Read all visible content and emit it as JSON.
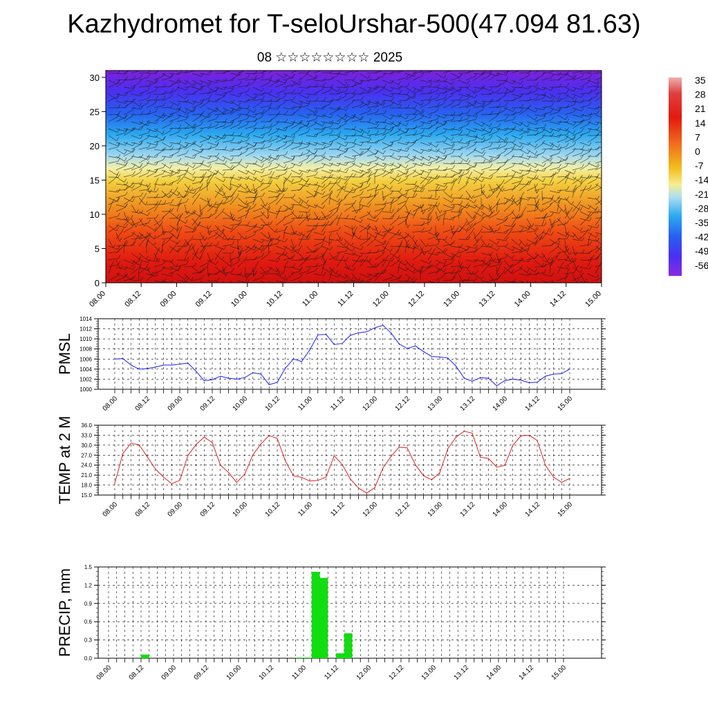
{
  "title": "Kazhydromet for T-seloUrshar-500(47.094 81.63)",
  "subtitle": "08 ☆☆☆☆☆☆☆☆ 2025",
  "chart_data": [
    {
      "type": "heatmap",
      "name": "cross-section",
      "description_note": "",
      "x_ticks": [
        "08.00",
        "08.12",
        "09.00",
        "09.12",
        "10.00",
        "10.12",
        "11.00",
        "11.12",
        "12.00",
        "12.12",
        "13.00",
        "13.12",
        "14.00",
        "14.12",
        "15.00"
      ],
      "y_ticks": [
        "0",
        "5",
        "10",
        "15",
        "20",
        "25",
        "30"
      ],
      "ylim": [
        0,
        31
      ],
      "colorbar_labels": [
        "35",
        "28",
        "21",
        "14",
        "7",
        "0",
        "-7",
        "-14",
        "-21",
        "-28",
        "-35",
        "-42",
        "-49",
        "-56"
      ],
      "colors": {
        "top": "#7a1fd9",
        "mid": "#f0e060",
        "bottom": "#e01a10"
      }
    },
    {
      "type": "line",
      "ylabel": "PMSL",
      "ylim": [
        1000,
        1014
      ],
      "y_ticks": [
        "1014",
        "1012",
        "1010",
        "1008",
        "1006",
        "1004",
        "1002",
        "1000"
      ],
      "x_ticks": [
        "08.00",
        "08.12",
        "09.00",
        "09.12",
        "10.00",
        "10.12",
        "11.00",
        "11.12",
        "12.00",
        "12.12",
        "13.00",
        "13.12",
        "14.00",
        "14.12",
        "15.00"
      ],
      "color": "#1a1aff",
      "values": [
        1006.0,
        1006.1,
        1004.8,
        1004.0,
        1004.1,
        1004.4,
        1004.8,
        1004.8,
        1005.0,
        1005.2,
        1003.6,
        1001.7,
        1001.9,
        1002.6,
        1002.2,
        1002.0,
        1002.3,
        1003.3,
        1003.0,
        1000.9,
        1001.4,
        1004.2,
        1006.0,
        1005.5,
        1007.8,
        1010.8,
        1010.9,
        1008.9,
        1009.1,
        1010.7,
        1011.2,
        1011.4,
        1012.2,
        1012.7,
        1011.2,
        1009.0,
        1008.1,
        1008.6,
        1007.5,
        1006.5,
        1006.4,
        1006.2,
        1004.6,
        1002.2,
        1001.6,
        1002.3,
        1002.2,
        1000.7,
        1001.7,
        1002.0,
        1001.8,
        1001.3,
        1001.4,
        1002.6,
        1003.0,
        1003.1,
        1004.0
      ]
    },
    {
      "type": "line",
      "ylabel": "TEMP at 2 M",
      "ylim": [
        15,
        36
      ],
      "y_ticks": [
        "36.0",
        "33.0",
        "30.0",
        "27.0",
        "24.0",
        "21.0",
        "18.0",
        "15.0"
      ],
      "x_ticks": [
        "08.00",
        "08.12",
        "09.00",
        "09.12",
        "10.00",
        "10.12",
        "11.00",
        "11.12",
        "12.00",
        "12.12",
        "13.00",
        "13.12",
        "14.00",
        "14.12",
        "15.00"
      ],
      "color": "#e02020",
      "values": [
        18.6,
        27.5,
        30.6,
        30.1,
        26.5,
        22.8,
        20.4,
        18.4,
        19.4,
        26.9,
        30.2,
        32.4,
        30.8,
        24.0,
        21.8,
        18.8,
        21.3,
        27.1,
        30.4,
        32.9,
        32.0,
        25.2,
        20.8,
        20.3,
        19.2,
        19.4,
        20.4,
        26.8,
        24.2,
        19.8,
        17.1,
        15.6,
        17.2,
        23.1,
        26.6,
        29.4,
        29.2,
        24.1,
        20.8,
        19.6,
        21.7,
        29.0,
        32.4,
        34.2,
        33.6,
        26.4,
        26.0,
        23.4,
        23.9,
        30.0,
        32.8,
        33.0,
        31.4,
        24.0,
        20.4,
        18.8,
        20.0
      ]
    },
    {
      "type": "bar",
      "ylabel": "PRECIP, mm",
      "ylim": [
        0,
        1.5
      ],
      "y_ticks": [
        "1.5",
        "1.2",
        "0.9",
        "0.6",
        "0.3",
        "0.0"
      ],
      "x_ticks": [
        "08.00",
        "08.12",
        "09.00",
        "09.12",
        "10.00",
        "10.12",
        "11.00",
        "11.12",
        "12.00",
        "12.12",
        "13.00",
        "13.12",
        "14.00",
        "14.12",
        "15.00"
      ],
      "color": "#11dd11",
      "values": [
        0,
        0,
        0,
        0,
        0.06,
        0,
        0,
        0,
        0,
        0,
        0,
        0,
        0,
        0,
        0,
        0,
        0,
        0,
        0,
        0,
        0,
        0,
        0,
        0.01,
        0.01,
        1.42,
        1.32,
        0,
        0.08,
        0.41,
        0,
        0,
        0,
        0,
        0,
        0,
        0,
        0,
        0,
        0,
        0,
        0,
        0,
        0,
        0,
        0,
        0,
        0,
        0,
        0,
        0,
        0,
        0,
        0,
        0,
        0,
        0
      ]
    }
  ]
}
